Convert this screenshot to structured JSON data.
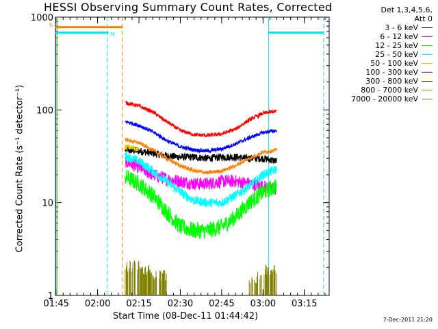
{
  "chart_data": {
    "type": "line",
    "title": "HESSI Observing Summary Count Rates, Corrected",
    "xlabel": "Start Time (08-Dec-11 01:44:42)",
    "ylabel": "Corrected Count Rate (s⁻¹ detector⁻¹)",
    "yscale": "log",
    "ylim": [
      1,
      1000
    ],
    "xlim": [
      "01:44:42",
      "03:24:00"
    ],
    "x_ticks": [
      "01:45",
      "02:00",
      "02:15",
      "02:30",
      "02:45",
      "03:00",
      "03:15"
    ],
    "y_ticks": [
      "1",
      "10",
      "100",
      "1000"
    ],
    "legend_header": [
      "Det 1,3,4,5,6,",
      "Att 0"
    ],
    "legend_position": "right",
    "footer": "7-Dec-2011 21:20",
    "flags": [
      {
        "label": "S",
        "color": "#ff8000",
        "start": "01:44:42",
        "end": "02:09:00",
        "level": 780
      },
      {
        "label": "N",
        "color": "#00e5ee",
        "start": "01:44:42",
        "end": "02:04:00",
        "level": 680
      },
      {
        "label": "",
        "color": "#00e5ee",
        "start": "03:02:00",
        "end": "03:22:00",
        "level": 680
      }
    ],
    "markers": [
      {
        "time": "01:45:00",
        "color": "#00e5ee",
        "style": "solid"
      },
      {
        "time": "01:45:30",
        "color": "#ff8000",
        "style": "solid"
      },
      {
        "time": "02:03:30",
        "color": "#00e5ee",
        "style": "dashed"
      },
      {
        "time": "02:09:00",
        "color": "#ff8000",
        "style": "dashed"
      },
      {
        "time": "03:02:00",
        "color": "#00e5ee",
        "style": "solid"
      },
      {
        "time": "03:22:00",
        "color": "#00e5ee",
        "style": "dashed"
      }
    ],
    "series": [
      {
        "name": "3 - 6 keV",
        "color": "#000000",
        "x": [
          "02:10",
          "02:15",
          "02:20",
          "02:25",
          "02:30",
          "02:35",
          "02:40",
          "02:45",
          "02:50",
          "02:55",
          "03:00",
          "03:05"
        ],
        "values": [
          37,
          36,
          34,
          32,
          31,
          31,
          30,
          31,
          31,
          30,
          30,
          28
        ]
      },
      {
        "name": "6 - 12 keV",
        "color": "#ff00ff",
        "x": [
          "02:10",
          "02:15",
          "02:20",
          "02:25",
          "02:30",
          "02:35",
          "02:40",
          "02:45",
          "02:50",
          "02:55",
          "03:00",
          "03:05"
        ],
        "values": [
          28,
          24,
          20,
          18,
          17,
          16,
          16,
          17,
          17,
          16,
          15,
          14
        ]
      },
      {
        "name": "12 - 25 keV",
        "color": "#00ff00",
        "x": [
          "02:10",
          "02:15",
          "02:20",
          "02:25",
          "02:30",
          "02:35",
          "02:40",
          "02:45",
          "02:50",
          "02:55",
          "03:00",
          "03:05"
        ],
        "values": [
          19,
          16,
          12,
          8,
          5.5,
          5,
          5,
          5.5,
          7,
          10,
          13,
          15
        ]
      },
      {
        "name": "25 - 50 keV",
        "color": "#00ffff",
        "x": [
          "02:10",
          "02:15",
          "02:20",
          "02:25",
          "02:30",
          "02:35",
          "02:40",
          "02:45",
          "02:50",
          "02:55",
          "03:00",
          "03:05"
        ],
        "values": [
          32,
          28,
          22,
          17,
          13,
          10.5,
          10,
          10,
          12,
          15,
          20,
          23
        ]
      },
      {
        "name": "50 - 100 keV",
        "color": "#d8c800",
        "x": [
          "02:10",
          "02:15"
        ],
        "values": [
          40,
          38
        ]
      },
      {
        "name": "100 - 300 keV",
        "color": "#ff0000",
        "x": [
          "02:10",
          "02:15",
          "02:20",
          "02:25",
          "02:30",
          "02:35",
          "02:40",
          "02:45",
          "02:50",
          "02:55",
          "03:00",
          "03:05"
        ],
        "values": [
          120,
          110,
          95,
          75,
          60,
          54,
          53,
          55,
          62,
          78,
          92,
          97
        ]
      },
      {
        "name": "300 - 800 keV",
        "color": "#0000ff",
        "x": [
          "02:10",
          "02:15",
          "02:20",
          "02:25",
          "02:30",
          "02:35",
          "02:40",
          "02:45",
          "02:50",
          "02:55",
          "03:00",
          "03:05"
        ],
        "values": [
          75,
          68,
          58,
          47,
          40,
          37,
          36,
          38,
          43,
          50,
          57,
          60
        ]
      },
      {
        "name": "800 - 7000 keV",
        "color": "#ff8000",
        "x": [
          "02:10",
          "02:15",
          "02:20",
          "02:25",
          "02:30",
          "02:35",
          "02:40",
          "02:45",
          "02:50",
          "02:55",
          "03:00",
          "03:05"
        ],
        "values": [
          48,
          44,
          37,
          30,
          25,
          22,
          21,
          22,
          25,
          30,
          35,
          37
        ]
      },
      {
        "name": "7000 - 20000 keV",
        "color": "#808000",
        "x": [
          "02:10",
          "02:15",
          "02:20",
          "02:25",
          "02:55",
          "03:00",
          "03:05"
        ],
        "values": [
          2,
          1.8,
          1.6,
          1.5,
          1.5,
          1.8,
          1.9
        ]
      }
    ]
  }
}
